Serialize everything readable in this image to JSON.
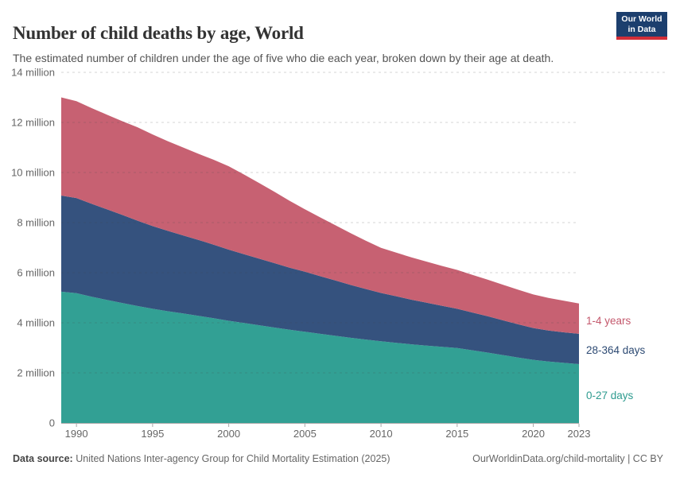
{
  "header": {
    "title": "Number of child deaths by age, World",
    "subtitle": "The estimated number of children under the age of five who die each year, broken down by their age at death."
  },
  "logo": {
    "line1": "Our World",
    "line2": "in Data",
    "bg_color": "#1c3f6e",
    "bar_color": "#d22e38"
  },
  "chart_data": {
    "type": "area",
    "stacked": true,
    "title": "Number of child deaths by age, World",
    "xlabel": "",
    "ylabel": "",
    "unit": "million",
    "xlim": [
      1989,
      2023
    ],
    "ylim": [
      0,
      14
    ],
    "grid": "dashed",
    "legend_position": "right",
    "x": [
      1989,
      1990,
      1991,
      1992,
      1993,
      1994,
      1995,
      1996,
      1997,
      1998,
      1999,
      2000,
      2001,
      2002,
      2003,
      2004,
      2005,
      2006,
      2007,
      2008,
      2009,
      2010,
      2011,
      2012,
      2013,
      2014,
      2015,
      2016,
      2017,
      2018,
      2019,
      2020,
      2021,
      2022,
      2023
    ],
    "series": [
      {
        "name": "0-27 days",
        "color": "#32a094",
        "label_color": "#2e9b8f",
        "values": [
          5.24,
          5.18,
          5.04,
          4.91,
          4.79,
          4.67,
          4.56,
          4.46,
          4.37,
          4.28,
          4.18,
          4.08,
          3.99,
          3.9,
          3.81,
          3.72,
          3.64,
          3.56,
          3.48,
          3.4,
          3.33,
          3.26,
          3.2,
          3.14,
          3.09,
          3.04,
          2.99,
          2.9,
          2.81,
          2.71,
          2.61,
          2.52,
          2.45,
          2.4,
          2.35
        ]
      },
      {
        "name": "28-364 days",
        "color": "#35527e",
        "label_color": "#2d4a73",
        "values": [
          3.84,
          3.8,
          3.71,
          3.62,
          3.52,
          3.41,
          3.3,
          3.21,
          3.12,
          3.03,
          2.94,
          2.84,
          2.75,
          2.66,
          2.57,
          2.48,
          2.4,
          2.3,
          2.21,
          2.11,
          2.02,
          1.93,
          1.86,
          1.78,
          1.71,
          1.64,
          1.57,
          1.51,
          1.45,
          1.39,
          1.33,
          1.27,
          1.24,
          1.22,
          1.21
        ]
      },
      {
        "name": "1-4 years",
        "color": "#c76172",
        "label_color": "#c4586c",
        "values": [
          3.92,
          3.87,
          3.82,
          3.78,
          3.74,
          3.73,
          3.66,
          3.58,
          3.51,
          3.44,
          3.39,
          3.33,
          3.18,
          3.02,
          2.85,
          2.67,
          2.49,
          2.35,
          2.21,
          2.07,
          1.93,
          1.8,
          1.74,
          1.69,
          1.64,
          1.59,
          1.55,
          1.5,
          1.46,
          1.42,
          1.38,
          1.34,
          1.3,
          1.26,
          1.21
        ]
      }
    ],
    "yticks": [
      {
        "value": 0,
        "label": "0"
      },
      {
        "value": 2,
        "label": "2 million"
      },
      {
        "value": 4,
        "label": "4 million"
      },
      {
        "value": 6,
        "label": "6 million"
      },
      {
        "value": 8,
        "label": "8 million"
      },
      {
        "value": 10,
        "label": "10 million"
      },
      {
        "value": 12,
        "label": "12 million"
      },
      {
        "value": 14,
        "label": "14 million"
      }
    ],
    "xticks": [
      {
        "value": 1990,
        "label": "1990"
      },
      {
        "value": 1995,
        "label": "1995"
      },
      {
        "value": 2000,
        "label": "2000"
      },
      {
        "value": 2005,
        "label": "2005"
      },
      {
        "value": 2010,
        "label": "2010"
      },
      {
        "value": 2015,
        "label": "2015"
      },
      {
        "value": 2020,
        "label": "2020"
      },
      {
        "value": 2023,
        "label": "2023"
      }
    ]
  },
  "footer": {
    "source_label": "Data source:",
    "source_text": "United Nations Inter-agency Group for Child Mortality Estimation (2025)",
    "link_text": "OurWorldinData.org/child-mortality",
    "separator": " | ",
    "license_text": "CC BY"
  }
}
